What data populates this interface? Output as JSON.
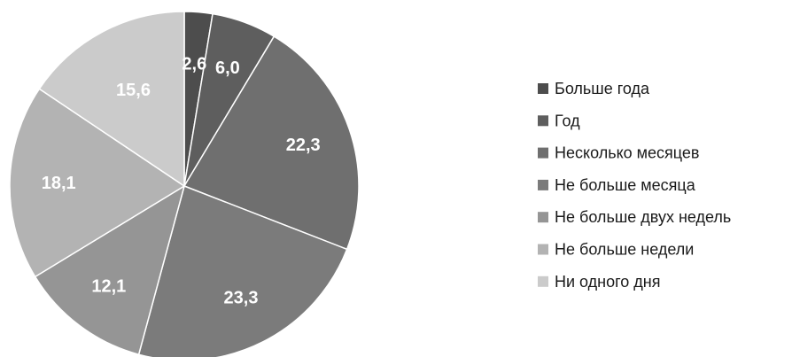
{
  "chart_data": {
    "type": "pie",
    "start_angle_deg": 0,
    "direction": "clockwise",
    "legend_position": "right",
    "slices": [
      {
        "label": "Больше года",
        "value": 2.6,
        "value_label": "2,6",
        "color": "#4d4d4d"
      },
      {
        "label": "Год",
        "value": 6.0,
        "value_label": "6,0",
        "color": "#5e5e5e"
      },
      {
        "label": "Несколько месяцев",
        "value": 22.3,
        "value_label": "22,3",
        "color": "#6f6f6f"
      },
      {
        "label": "Не больше месяца",
        "value": 23.3,
        "value_label": "23,3",
        "color": "#7b7b7b"
      },
      {
        "label": "Не больше двух недель",
        "value": 12.1,
        "value_label": "12,1",
        "color": "#959595"
      },
      {
        "label": "Не больше недели",
        "value": 18.1,
        "value_label": "18,1",
        "color": "#b3b3b3"
      },
      {
        "label": "Ни одного дня",
        "value": 15.6,
        "value_label": "15,6",
        "color": "#cbcbcb"
      }
    ]
  }
}
